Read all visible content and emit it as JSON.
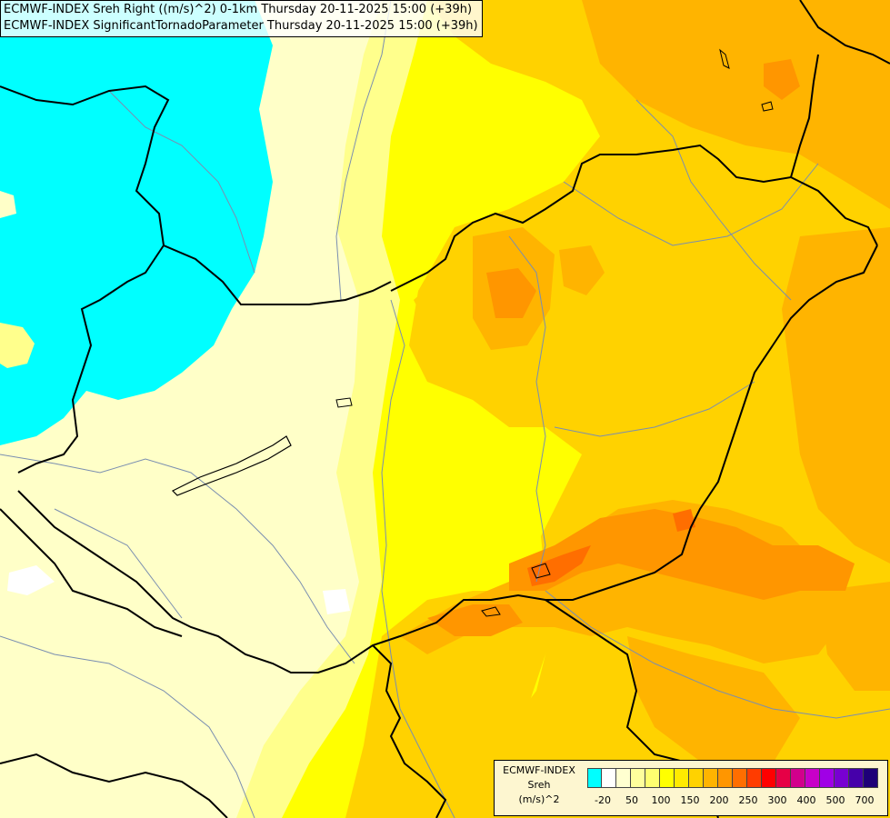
{
  "header": {
    "line1": "ECMWF-INDEX Sreh Right ((m/s)^2) 0-1km Thursday 20-11-2025 15:00 (+39h)",
    "line2": "ECMWF-INDEX SignificantTornadoParameter Thursday 20-11-2025 15:00 (+39h)"
  },
  "legend": {
    "title": "ECMWF-INDEX",
    "variable": "Sreh",
    "unit": "(m/s)^2",
    "colors": [
      "#00ffff",
      "#ffffff",
      "#ffffd0",
      "#ffff9c",
      "#ffff70",
      "#ffff00",
      "#ffea00",
      "#ffd200",
      "#ffb400",
      "#ff9600",
      "#ff6e00",
      "#ff3c00",
      "#ff0000",
      "#e60046",
      "#d2008c",
      "#c800c8",
      "#a000e6",
      "#7800d2",
      "#4600aa",
      "#1e0078"
    ],
    "ticks": [
      "-20",
      "50",
      "100",
      "150",
      "200",
      "250",
      "300",
      "400",
      "500",
      "700"
    ]
  },
  "map": {
    "palette": {
      "cyan": "#00ffff",
      "pale": "#ffffc8",
      "light_yellow": "#ffff8c",
      "yellow": "#ffff00",
      "golden": "#ffd200",
      "orange": "#ffb400",
      "dark_orange": "#ff9600",
      "red_orange": "#ff6e00",
      "border": "#000000",
      "river": "#7a8eb0"
    }
  }
}
